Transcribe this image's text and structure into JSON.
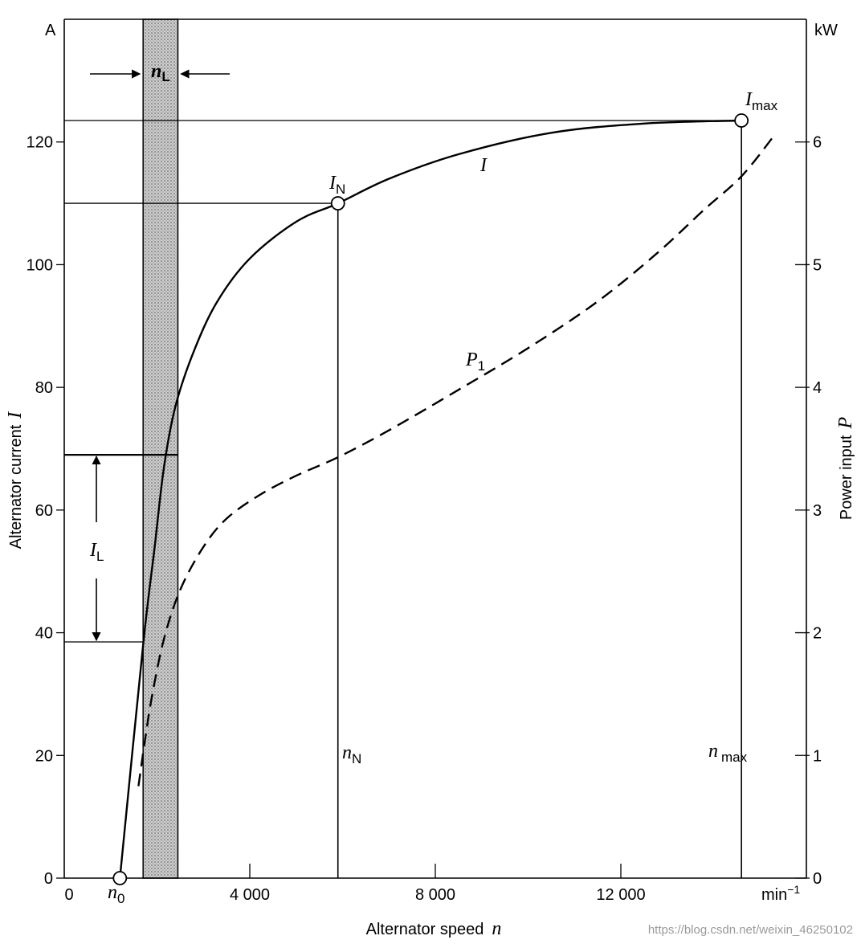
{
  "chart_data": {
    "type": "line",
    "xlabel": "Alternator speed",
    "xlabel_symbol": "n",
    "x_unit": "min",
    "x_unit_exp": "−1",
    "ylabel_left": "Alternator current",
    "ylabel_left_symbol": "I",
    "y_left_unit": "A",
    "ylabel_right": "Power input",
    "ylabel_right_symbol": "P",
    "y_right_unit": "kW",
    "xlim": [
      0,
      16000
    ],
    "ylim_left": [
      0,
      140
    ],
    "ylim_right": [
      0,
      7
    ],
    "x_ticks": [
      0,
      4000,
      8000,
      12000
    ],
    "x_tick_labels": [
      "0",
      "4 000",
      "8 000",
      "12 000"
    ],
    "y_left_ticks": [
      0,
      20,
      40,
      60,
      80,
      100,
      120
    ],
    "y_right_ticks": [
      0,
      1,
      2,
      3,
      4,
      5,
      6
    ],
    "grid": false,
    "series": [
      {
        "name": "I",
        "axis": "left",
        "style": "solid",
        "x": [
          1200,
          1700,
          1950,
          2150,
          2400,
          2800,
          3300,
          4000,
          5000,
          5900,
          7000,
          8500,
          10500,
          12500,
          14600
        ],
        "values": [
          0,
          38,
          54,
          67,
          77,
          86,
          94,
          101,
          107,
          110,
          114,
          118,
          121.5,
          123,
          123.5
        ]
      },
      {
        "name": "P",
        "name_sub": "1",
        "axis": "right",
        "style": "dashed",
        "x": [
          1600,
          1750,
          1900,
          2150,
          2500,
          3000,
          3500,
          4200,
          5000,
          5900,
          7000,
          8500,
          10000,
          11500,
          12800,
          13800,
          14600,
          15300
        ],
        "values": [
          0.75,
          1.15,
          1.5,
          1.95,
          2.35,
          2.7,
          2.93,
          3.12,
          3.28,
          3.43,
          3.65,
          3.98,
          4.32,
          4.7,
          5.1,
          5.45,
          5.72,
          6.05
        ]
      }
    ],
    "points": [
      {
        "label": "I",
        "label_sub": "N",
        "x": 5900,
        "y": 110
      },
      {
        "label": "I",
        "label_sub": "max",
        "x": 14600,
        "y": 123.5
      },
      {
        "label": "n",
        "label_sub": "0",
        "x": 1200,
        "y": 0
      }
    ],
    "reference_lines": {
      "horizontal": [
        123.5,
        110,
        69,
        38.5
      ],
      "vertical": [
        {
          "label": "n",
          "label_sub": "N",
          "x": 5900
        },
        {
          "label": "n",
          "label_sub": "max",
          "x": 14600
        }
      ]
    },
    "band": {
      "label": "n",
      "label_sub": "L",
      "x_from": 1700,
      "x_to": 2450
    },
    "range_marker": {
      "label": "I",
      "label_sub": "L",
      "from": 38.5,
      "to": 69
    }
  },
  "watermark": "https://blog.csdn.net/weixin_46250102",
  "colors": {
    "ink": "#000000",
    "band": "#b8b8b8",
    "watermark": "#9a9a9a"
  }
}
